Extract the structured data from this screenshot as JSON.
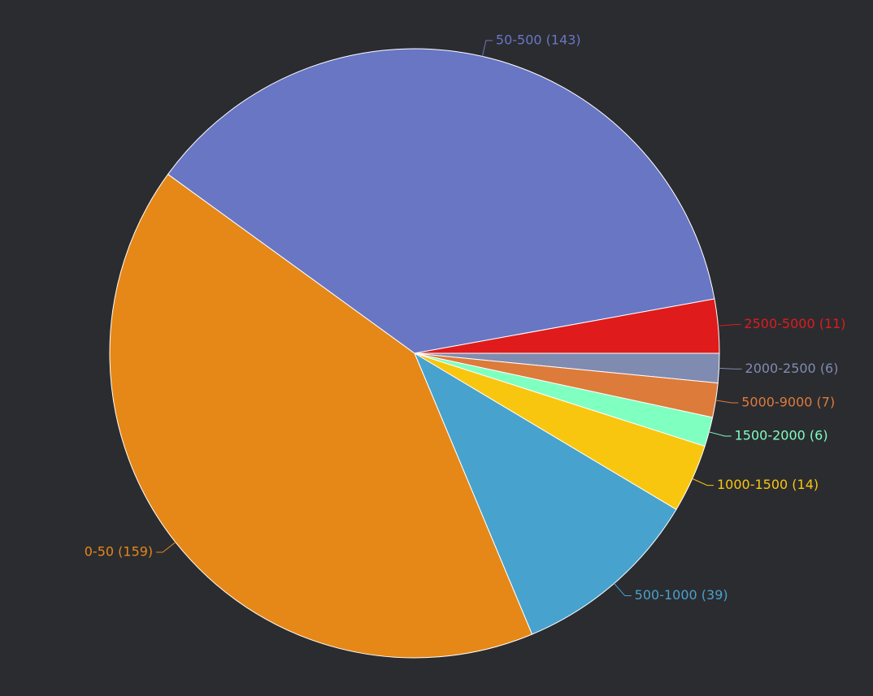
{
  "chart_data": {
    "type": "pie",
    "value_labels": [
      "2000-2500 (6)",
      "5000-9000 (7)",
      "1500-2000 (6)",
      "1000-1500 (14)",
      "500-1000 (39)",
      "0-50 (159)",
      "50-500 (143)",
      "2500-5000 (11)"
    ],
    "values": [
      6,
      7,
      6,
      14,
      39,
      159,
      143,
      11
    ],
    "colors": [
      "#7f8bb0",
      "#dd7b3a",
      "#7fffc0",
      "#f8c60f",
      "#47a2cd",
      "#e58818",
      "#6876c4",
      "#e01b1b"
    ]
  }
}
